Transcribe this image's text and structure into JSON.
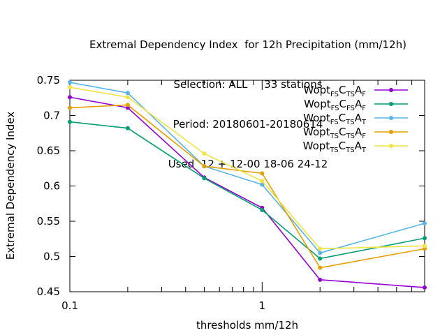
{
  "chart_data": {
    "type": "line",
    "title_lines": [
      "Extremal Dependency Index  for 12h Precipitation (mm/12h)",
      "Selection: ALL     33 stations",
      "Period: 20180601-20180614",
      "Used  12 + 12-00 18-06 24-12"
    ],
    "xlabel": "thresholds mm/12h",
    "ylabel": "Extremal Dependency Index",
    "xscale": "log",
    "xlim": [
      0.1,
      7
    ],
    "ylim": [
      0.45,
      0.75
    ],
    "x_ticks": [
      0.1,
      1
    ],
    "x_tick_labels": [
      "0.1",
      "1"
    ],
    "y_ticks": [
      0.45,
      0.5,
      0.55,
      0.6,
      0.65,
      0.7,
      0.75
    ],
    "y_tick_labels": [
      "0.45",
      "0.5",
      "0.55",
      "0.6",
      "0.65",
      "0.7",
      "0.75"
    ],
    "x": [
      0.1,
      0.2,
      0.5,
      1,
      2,
      7
    ],
    "legend_position": "top-right",
    "series": [
      {
        "name_base": "Wopt",
        "name_parts": [
          [
            "FS",
            "C"
          ],
          [
            "TS",
            "A"
          ],
          [
            "F",
            ""
          ]
        ],
        "color": "#9400D3",
        "values": [
          0.726,
          0.711,
          0.612,
          0.569,
          0.467,
          0.456
        ]
      },
      {
        "name_base": "Wopt",
        "name_parts": [
          [
            "FS",
            "C"
          ],
          [
            "FS",
            "A"
          ],
          [
            "F",
            ""
          ]
        ],
        "color": "#009E73",
        "values": [
          0.691,
          0.682,
          0.611,
          0.566,
          0.497,
          0.526
        ]
      },
      {
        "name_base": "Wopt",
        "name_parts": [
          [
            "FS",
            "C"
          ],
          [
            "TS",
            "A"
          ],
          [
            "T",
            ""
          ]
        ],
        "color": "#56B4E9",
        "values": [
          0.747,
          0.732,
          0.628,
          0.602,
          0.505,
          0.547
        ]
      },
      {
        "name_base": "Wopt",
        "name_parts": [
          [
            "TS",
            "C"
          ],
          [
            "TS",
            "A"
          ],
          [
            "F",
            ""
          ]
        ],
        "color": "#E69F00",
        "values": [
          0.711,
          0.715,
          0.628,
          0.618,
          0.484,
          0.511
        ]
      },
      {
        "name_base": "Wopt",
        "name_parts": [
          [
            "TS",
            "C"
          ],
          [
            "TS",
            "A"
          ],
          [
            "T",
            ""
          ]
        ],
        "color": "#F0E442",
        "values": [
          0.74,
          0.726,
          0.646,
          0.607,
          0.511,
          0.515
        ]
      }
    ]
  }
}
